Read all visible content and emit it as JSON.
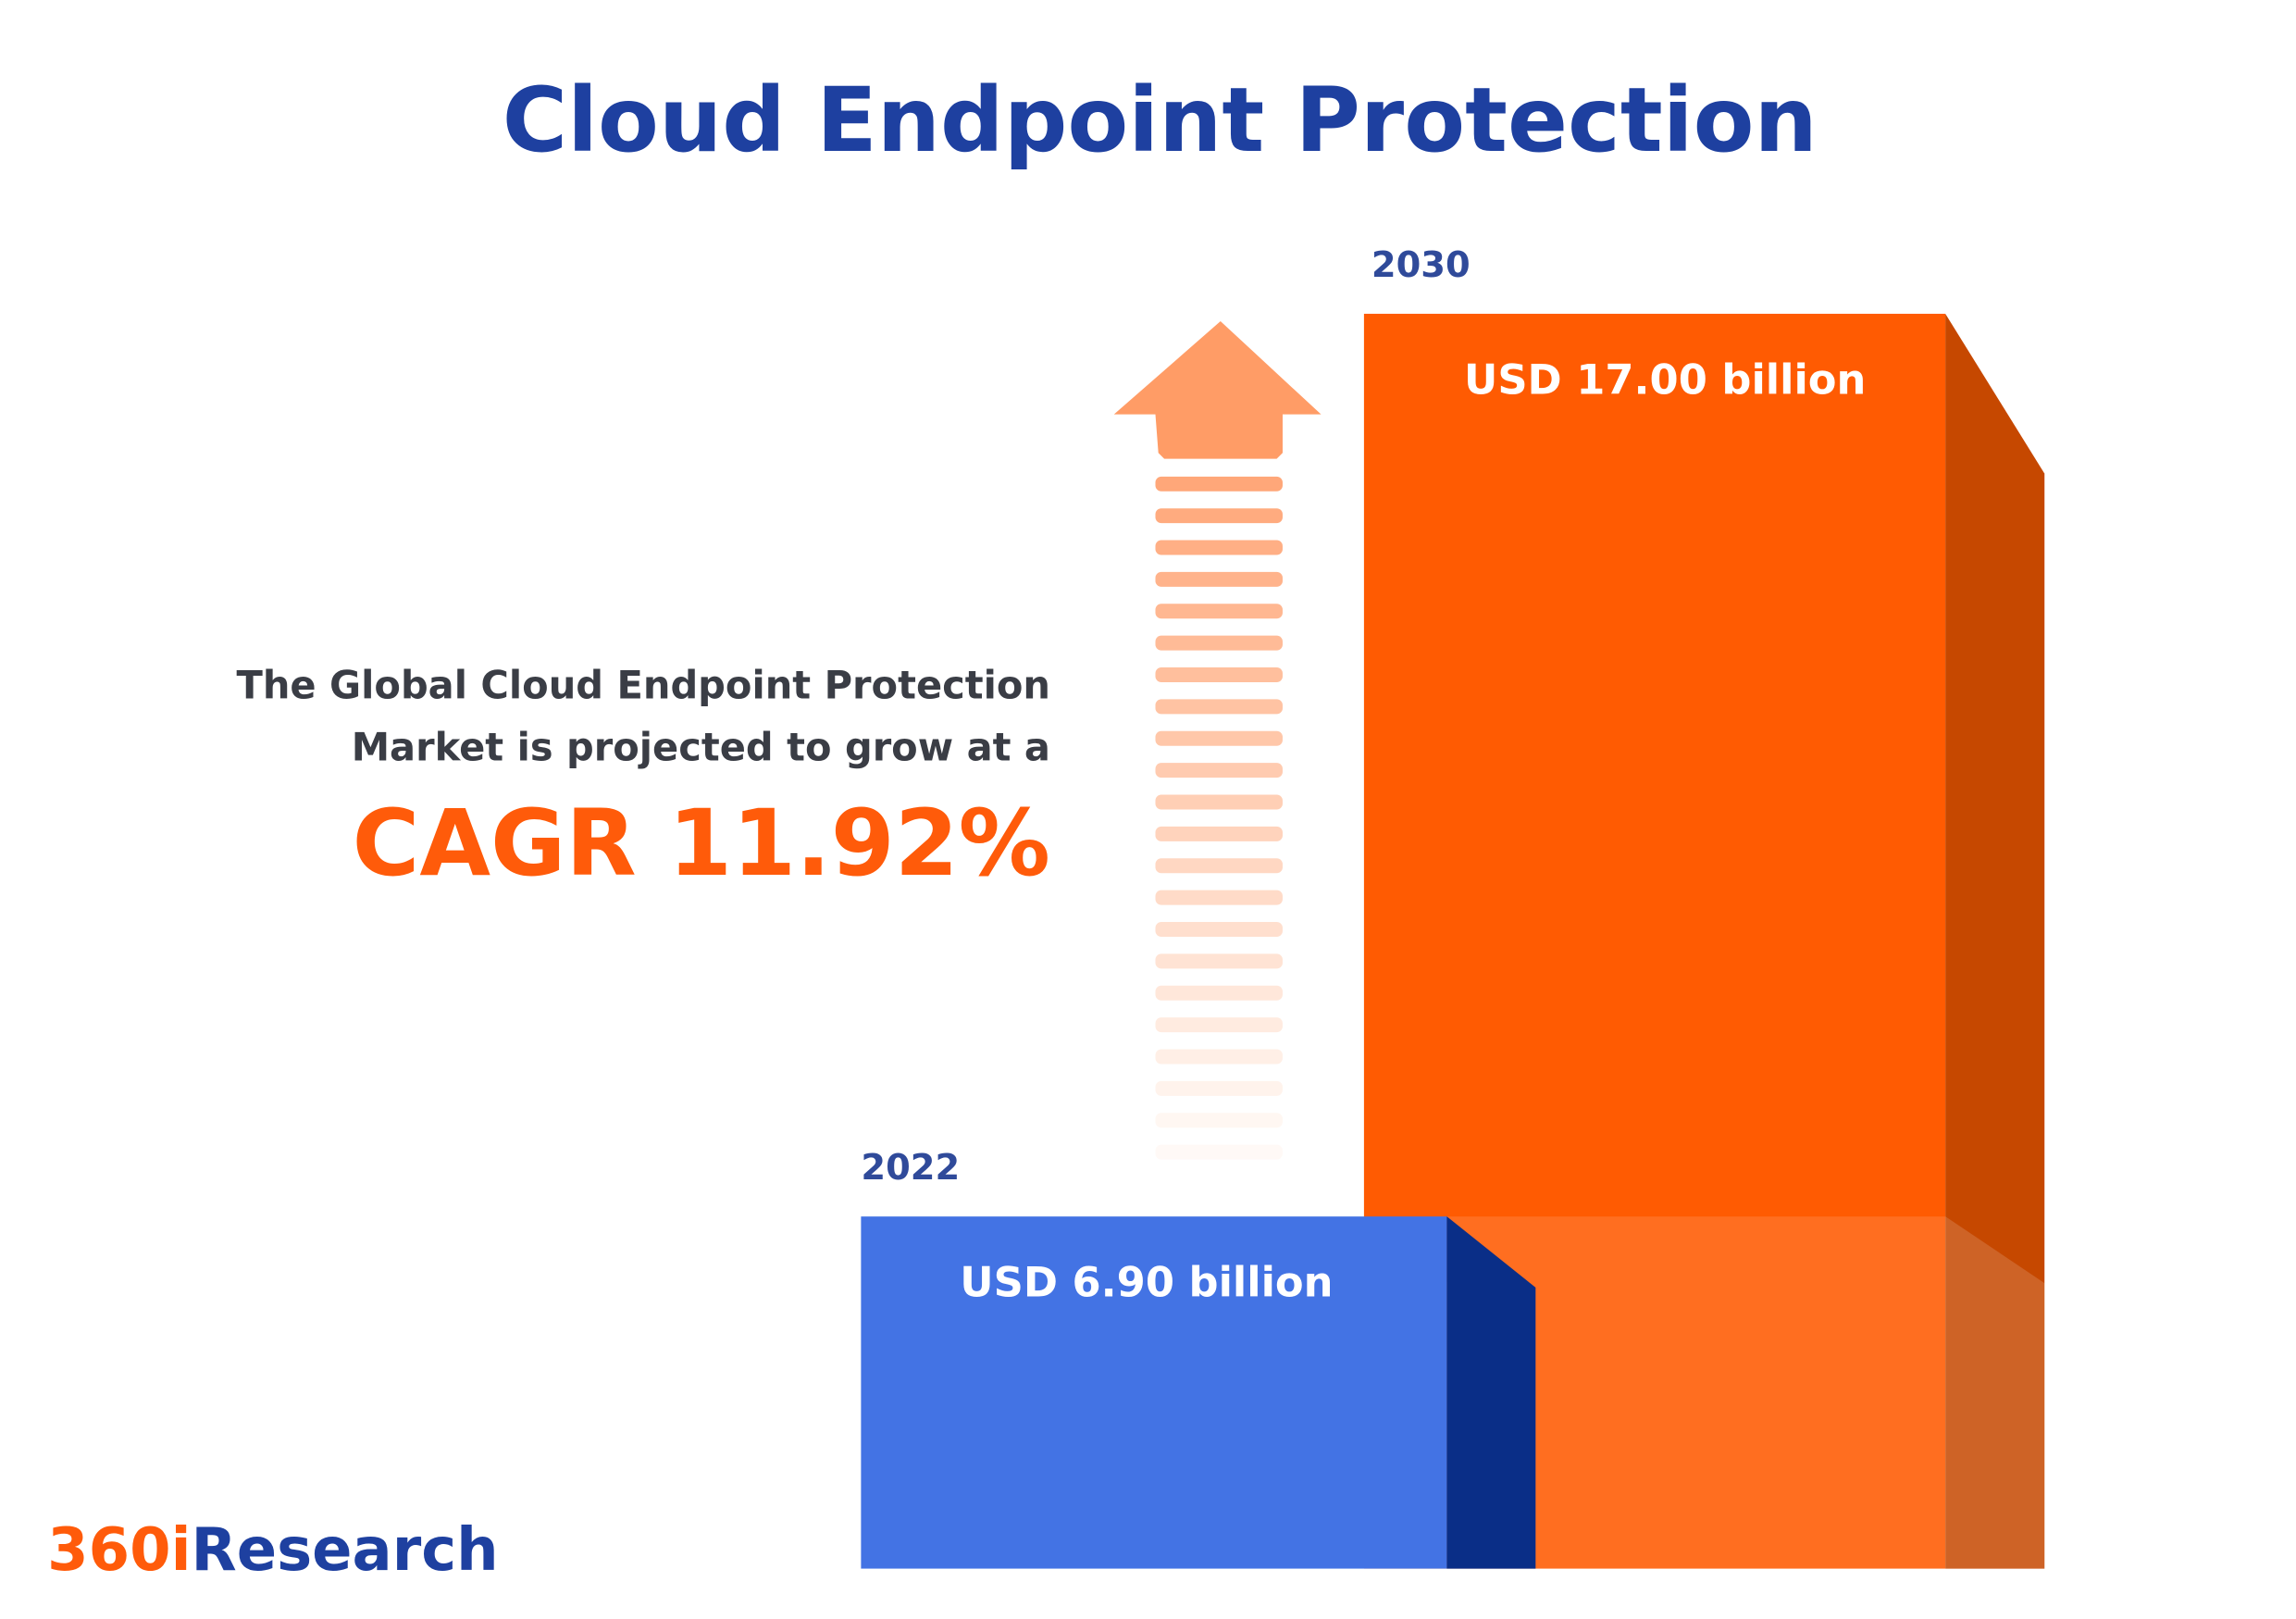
{
  "chart_data": {
    "type": "bar",
    "title": "Cloud Endpoint Protection",
    "categories": [
      "2022",
      "2030"
    ],
    "values": [
      6.9,
      17.0
    ],
    "value_labels": [
      "USD 6.90 billion",
      "USD 17.00 billion"
    ],
    "unit": "USD billion",
    "colors": [
      "#4373E4",
      "#FF5B02"
    ],
    "side_colors": [
      "#0A2E87",
      "#C64800"
    ]
  },
  "description": {
    "line1": "The Global Cloud Endpoint Protection",
    "line2": "Market is projected to grow at a",
    "cagr": "CAGR 11.92%"
  },
  "logo": {
    "part1": "360i",
    "part2": "Research",
    "color1": "#FF5B0A",
    "color2": "#1E40A0"
  }
}
